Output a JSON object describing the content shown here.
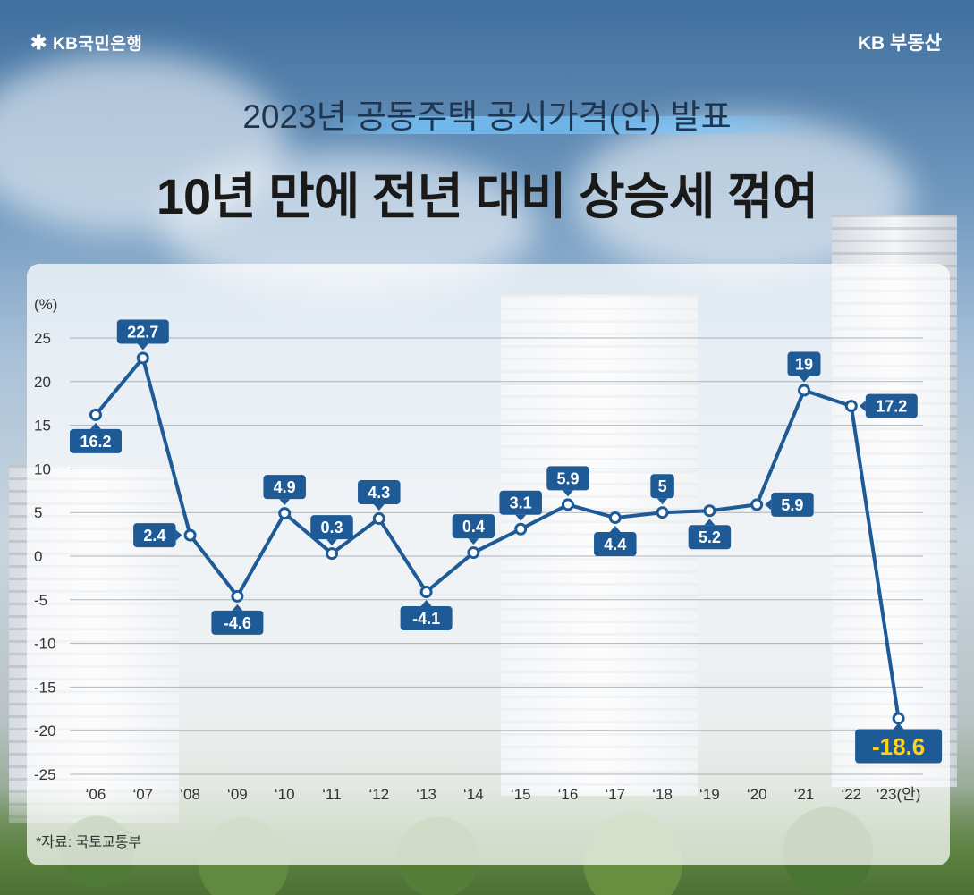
{
  "header": {
    "logo_text": "KB국민은행",
    "brand_text": "KB 부동산",
    "title_line1": "2023년 공동주택 공시가격(안) 발표",
    "title_line2": "10년 만에 전년 대비 상승세 꺾여"
  },
  "source_note": "*자료: 국토교통부",
  "colors": {
    "line": "#1d5a96",
    "label_bg": "#1d5a96",
    "label_text": "#ffffff",
    "highlight_bg": "#1d5a96",
    "highlight_text": "#ffd21f",
    "grid": "#9aa3ad",
    "axis_text": "#333333"
  },
  "chart_data": {
    "type": "line",
    "ylabel": "(%)",
    "ylim": [
      -25,
      25
    ],
    "yticks": [
      "25",
      "20",
      "15",
      "10",
      "5",
      "0",
      "-5",
      "-10",
      "-15",
      "-20",
      "-25"
    ],
    "categories": [
      "‘06",
      "‘07",
      "‘08",
      "‘09",
      "‘10",
      "‘11",
      "‘12",
      "‘13",
      "‘14",
      "‘15",
      "‘16",
      "‘17",
      "‘18",
      "‘19",
      "‘20",
      "‘21",
      "‘22",
      "‘23(안)"
    ],
    "values": [
      16.2,
      22.7,
      2.4,
      -4.6,
      4.9,
      0.3,
      4.3,
      -4.1,
      0.4,
      3.1,
      5.9,
      4.4,
      5,
      5.2,
      5.9,
      19,
      17.2,
      -18.6
    ],
    "labels": [
      "16.2",
      "22.7",
      "2.4",
      "-4.6",
      "4.9",
      "0.3",
      "4.3",
      "-4.1",
      "0.4",
      "3.1",
      "5.9",
      "4.4",
      "5",
      "5.2",
      "5.9",
      "19",
      "17.2",
      "-18.6"
    ],
    "grid": true
  }
}
